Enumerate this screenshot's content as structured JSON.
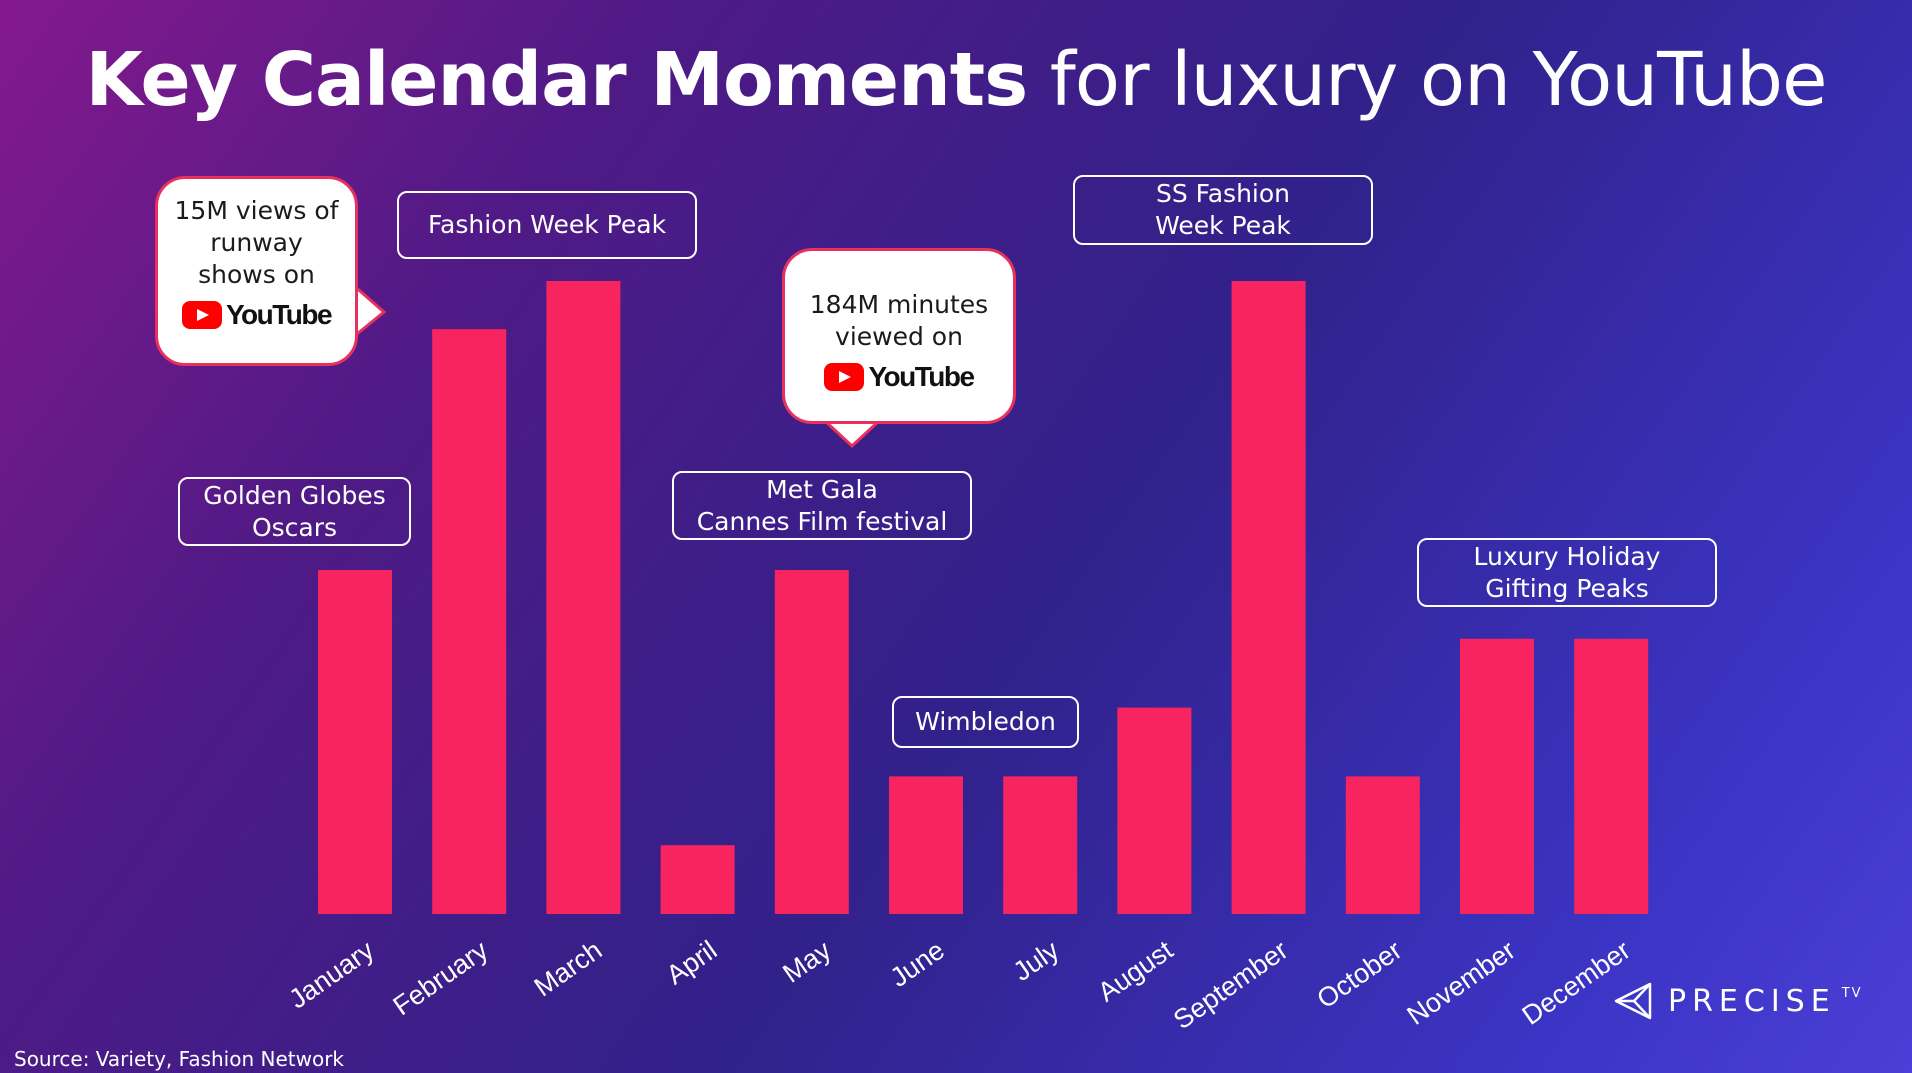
{
  "title": {
    "bold": "Key Calendar Moments",
    "light": " for luxury on YouTube"
  },
  "chart_data": {
    "type": "bar",
    "title": "Key Calendar Moments for luxury on YouTube",
    "categories": [
      "January",
      "February",
      "March",
      "April",
      "May",
      "June",
      "July",
      "August",
      "September",
      "October",
      "November",
      "December"
    ],
    "values": [
      5,
      8.5,
      9.2,
      1,
      5,
      2,
      2,
      3,
      9.2,
      2,
      4,
      4
    ],
    "ylim": [
      0,
      9.2
    ],
    "bar_color": "#f8245f",
    "grid": false,
    "xlabel": "",
    "ylabel": ""
  },
  "annotations": {
    "golden_globes": [
      "Golden Globes",
      "Oscars"
    ],
    "fashion_week": [
      "Fashion Week Peak"
    ],
    "met_gala": [
      "Met Gala",
      "Cannes Film festival"
    ],
    "wimbledon": [
      "Wimbledon"
    ],
    "ss_fashion": [
      "SS Fashion",
      "Week Peak"
    ],
    "luxury_holiday": [
      "Luxury Holiday",
      "Gifting Peaks"
    ]
  },
  "callouts": {
    "runway": {
      "lines": [
        "15M views of",
        "runway",
        "shows on"
      ],
      "logo": "YouTube"
    },
    "minutes": {
      "lines": [
        "184M minutes",
        "viewed on"
      ],
      "logo": "YouTube"
    }
  },
  "source": "Source: Variety, Fashion Network",
  "brand": {
    "name": "PRECISE",
    "suffix": "TV",
    "icon": "precise-logo-icon"
  },
  "colors": {
    "accent": "#f8245f",
    "callout_border": "#e8305e",
    "youtube_red": "#ff0000"
  }
}
